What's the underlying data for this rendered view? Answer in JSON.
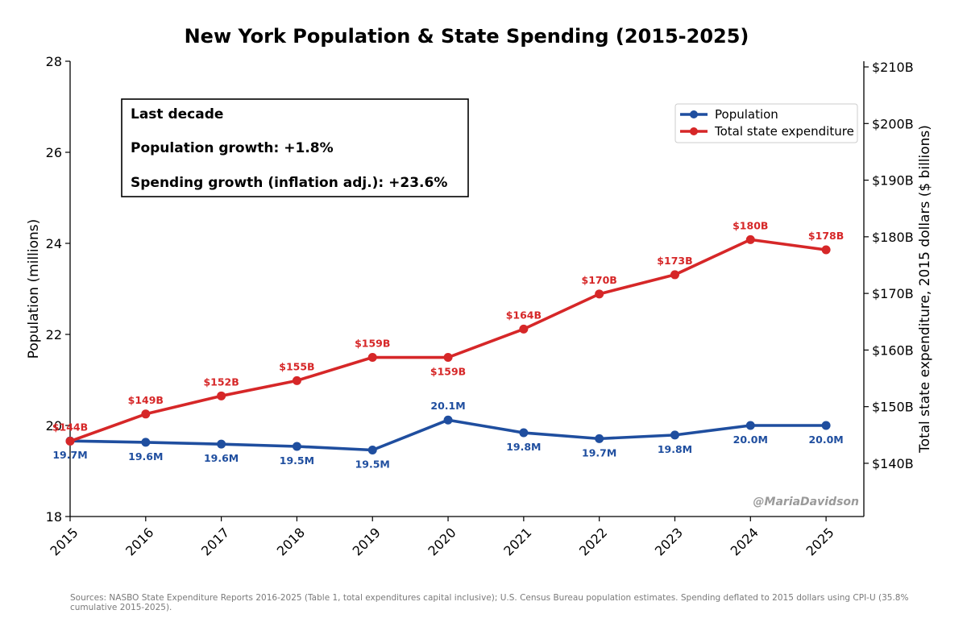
{
  "chart_data": {
    "type": "line",
    "title": "New York Population & State Spending (2015-2025)",
    "categories": [
      "2015",
      "2016",
      "2017",
      "2018",
      "2019",
      "2020",
      "2021",
      "2022",
      "2023",
      "2024",
      "2025"
    ],
    "x": [
      2015,
      2016,
      2017,
      2018,
      2019,
      2020,
      2021,
      2022,
      2023,
      2024,
      2025
    ],
    "xlim": [
      2015,
      2025.5
    ],
    "ylabel_left": "Population (millions)",
    "ylabel_right": "Total state expenditure, 2015 dollars ($ billions)",
    "ylim_left": [
      18,
      28
    ],
    "yticks_left": [
      18,
      20,
      22,
      24,
      26,
      28
    ],
    "ylim_right": [
      130.6,
      211.0
    ],
    "yticks_right": [
      140,
      150,
      160,
      170,
      180,
      190,
      200,
      210
    ],
    "ytick_labels_right": [
      "$140B",
      "$150B",
      "$160B",
      "$170B",
      "$180B",
      "$190B",
      "$200B",
      "$210B"
    ],
    "series": [
      {
        "name": "Population",
        "axis": "left",
        "color": "#1f4e9f",
        "values": [
          19.66,
          19.63,
          19.59,
          19.54,
          19.46,
          20.12,
          19.84,
          19.71,
          19.79,
          20.0,
          20.0
        ],
        "labels": [
          "19.7M",
          "19.6M",
          "19.6M",
          "19.5M",
          "19.5M",
          "20.1M",
          "19.8M",
          "19.7M",
          "19.8M",
          "20.0M",
          "20.0M"
        ],
        "label_pos": [
          "below",
          "below",
          "below",
          "below",
          "below",
          "above",
          "below",
          "below",
          "below",
          "below",
          "below"
        ]
      },
      {
        "name": "Total state expenditure",
        "axis": "right",
        "color": "#d62728",
        "values": [
          143.9,
          148.7,
          151.9,
          154.6,
          158.7,
          158.7,
          163.7,
          169.9,
          173.3,
          179.5,
          177.7
        ],
        "labels": [
          "$144B",
          "$149B",
          "$152B",
          "$155B",
          "$159B",
          "$159B",
          "$164B",
          "$170B",
          "$173B",
          "$180B",
          "$178B"
        ],
        "label_pos": [
          "above",
          "above",
          "above",
          "above",
          "above",
          "below",
          "above",
          "above",
          "above",
          "above",
          "above"
        ]
      }
    ],
    "legend_position": "top-right",
    "annotation_box": {
      "lines": [
        "Last decade",
        "Population growth: +1.8%",
        "Spending growth (inflation adj.): +23.6%"
      ]
    },
    "watermark": "@MariaDavidson",
    "source_note": "Sources: NASBO State Expenditure Reports 2016-2025 (Table 1, total expenditures capital inclusive); U.S. Census Bureau population estimates. Spending deflated to 2015 dollars using CPI-U (35.8% cumulative 2015-2025)."
  }
}
